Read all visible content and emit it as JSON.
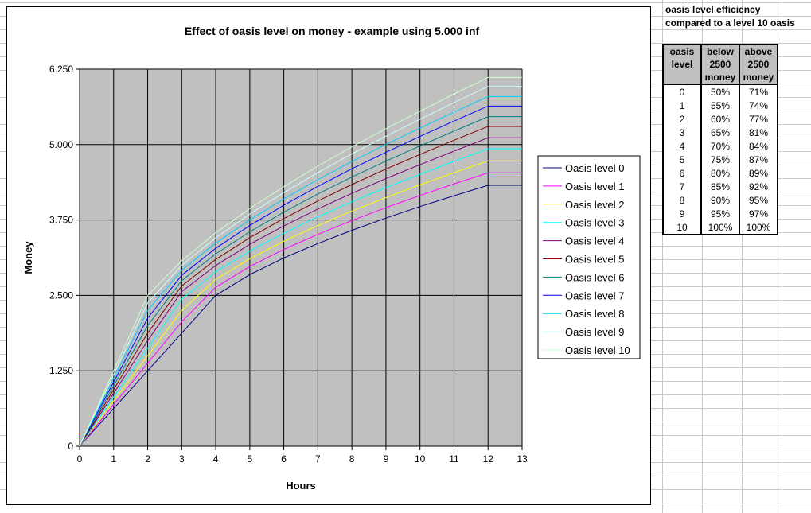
{
  "info": {
    "title_line1": "oasis level efficiency",
    "title_line2": "compared to a level 10 oasis"
  },
  "table": {
    "headers": [
      [
        "oasis",
        "level",
        ""
      ],
      [
        "below",
        "2500",
        "money"
      ],
      [
        "above",
        "2500",
        "money"
      ]
    ],
    "rows": [
      [
        "0",
        "50%",
        "71%"
      ],
      [
        "1",
        "55%",
        "74%"
      ],
      [
        "2",
        "60%",
        "77%"
      ],
      [
        "3",
        "65%",
        "81%"
      ],
      [
        "4",
        "70%",
        "84%"
      ],
      [
        "5",
        "75%",
        "87%"
      ],
      [
        "6",
        "80%",
        "89%"
      ],
      [
        "7",
        "85%",
        "92%"
      ],
      [
        "8",
        "90%",
        "95%"
      ],
      [
        "9",
        "95%",
        "97%"
      ],
      [
        "10",
        "100%",
        "100%"
      ]
    ]
  },
  "chart_data": {
    "type": "line",
    "title": "Effect of oasis level on money - example using 5.000 inf",
    "xlabel": "Hours",
    "ylabel": "Money",
    "x": [
      0,
      1,
      2,
      3,
      4,
      5,
      6,
      7,
      8,
      9,
      10,
      11,
      12,
      13
    ],
    "xlim": [
      0,
      13
    ],
    "ylim": [
      0,
      6250
    ],
    "yticks": [
      0,
      1250,
      2500,
      3750,
      5000,
      6250
    ],
    "ytick_labels": [
      "0",
      "1.250",
      "2.500",
      "3.750",
      "5.000",
      "6.250"
    ],
    "xtick_labels": [
      "0",
      "1",
      "2",
      "3",
      "4",
      "5",
      "6",
      "7",
      "8",
      "9",
      "10",
      "11",
      "12",
      "13"
    ],
    "grid": true,
    "plot_background": "#C0C0C0",
    "legend_position": "right",
    "series": [
      {
        "name": "Oasis level 0",
        "color": "#000080",
        "values": [
          0,
          625,
          1250,
          1875,
          2500,
          2844,
          3121,
          3360,
          3578,
          3782,
          3973,
          4152,
          4325,
          4325
        ]
      },
      {
        "name": "Oasis level 1",
        "color": "#FF00FF",
        "values": [
          0,
          688,
          1375,
          2063,
          2635,
          2979,
          3262,
          3512,
          3741,
          3955,
          4156,
          4348,
          4532,
          4532
        ]
      },
      {
        "name": "Oasis level 2",
        "color": "#FFFF00",
        "values": [
          0,
          750,
          1500,
          2250,
          2764,
          3108,
          3398,
          3657,
          3897,
          4121,
          4332,
          4534,
          4730,
          4730
        ]
      },
      {
        "name": "Oasis level 3",
        "color": "#00FFFF",
        "values": [
          0,
          813,
          1625,
          2438,
          2890,
          3234,
          3531,
          3801,
          4052,
          4287,
          4508,
          4722,
          4931,
          4931
        ]
      },
      {
        "name": "Oasis level 4",
        "color": "#800080",
        "values": [
          0,
          875,
          1750,
          2563,
          2996,
          3346,
          3652,
          3932,
          4192,
          4437,
          4667,
          4892,
          5112,
          5112
        ]
      },
      {
        "name": "Oasis level 5",
        "color": "#800000",
        "values": [
          0,
          938,
          1875,
          2657,
          3096,
          3457,
          3775,
          4065,
          4338,
          4594,
          4837,
          5072,
          5301,
          5301
        ]
      },
      {
        "name": "Oasis level 6",
        "color": "#008080",
        "values": [
          0,
          1000,
          2000,
          2745,
          3188,
          3555,
          3881,
          4181,
          4462,
          4726,
          4978,
          5223,
          5463,
          5463
        ]
      },
      {
        "name": "Oasis level 7",
        "color": "#0000FF",
        "values": [
          0,
          1063,
          2125,
          2833,
          3281,
          3658,
          3995,
          4307,
          4599,
          4873,
          5135,
          5391,
          5639,
          5639
        ]
      },
      {
        "name": "Oasis level 8",
        "color": "#00CCFF",
        "values": [
          0,
          1125,
          2250,
          2916,
          3368,
          3752,
          4098,
          4419,
          4720,
          5002,
          5274,
          5539,
          5797,
          5797
        ]
      },
      {
        "name": "Oasis level 9",
        "color": "#CCFFFF",
        "values": [
          0,
          1188,
          2375,
          2998,
          3455,
          3849,
          4205,
          4535,
          4846,
          5139,
          5420,
          5696,
          5964,
          5964
        ]
      },
      {
        "name": "Oasis level 10",
        "color": "#CCFFCC",
        "values": [
          0,
          1250,
          2500,
          3076,
          3538,
          3938,
          4303,
          4643,
          4963,
          5263,
          5553,
          5838,
          6114,
          6114
        ]
      }
    ]
  }
}
